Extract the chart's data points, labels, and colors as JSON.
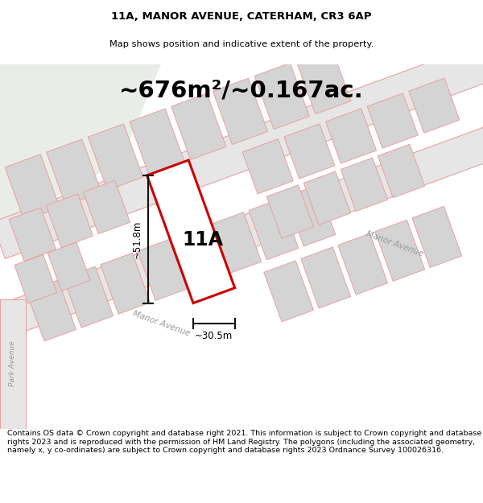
{
  "title": "11A, MANOR AVENUE, CATERHAM, CR3 6AP",
  "subtitle": "Map shows position and indicative extent of the property.",
  "area_text": "~676m²/~0.167ac.",
  "label_11A": "11A",
  "dim_height": "~51.8m",
  "dim_width": "~30.5m",
  "street_label_upper": "Manor Avenue",
  "street_label_lower": "Manor Avenue",
  "street_label_park": "Park Avenue",
  "footer": "Contains OS data © Crown copyright and database right 2021. This information is subject to Crown copyright and database rights 2023 and is reproduced with the permission of HM Land Registry. The polygons (including the associated geometry, namely x, y co-ordinates) are subject to Crown copyright and database rights 2023 Ordnance Survey 100026316.",
  "bg_map_color": "#f2f4f2",
  "road_fill": "#e6e6e6",
  "road_stroke": "#e8a0a0",
  "building_fill": "#d4d4d4",
  "building_stroke": "#e8a0a0",
  "green_fill": "#e8ede8",
  "plot_stroke": "#cc0000",
  "plot_fill": "#ffffff",
  "dim_line_color": "#111111",
  "title_fontsize": 9.5,
  "subtitle_fontsize": 8.2,
  "area_fontsize": 21,
  "footer_fontsize": 6.8,
  "label_fontsize": 17,
  "dim_fontsize": 8.5,
  "street_fontsize": 7.5
}
